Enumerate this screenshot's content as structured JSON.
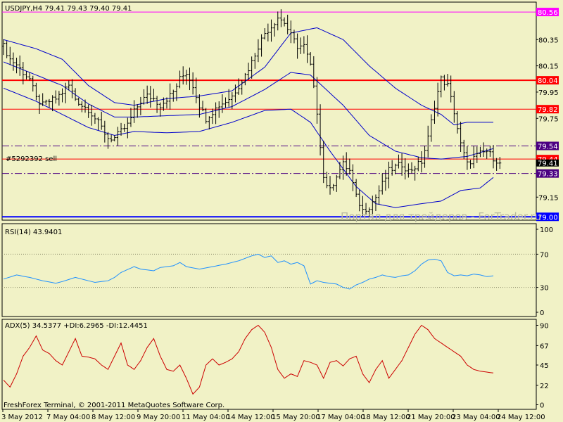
{
  "window": {
    "symbol_header": "USDJPY,H4  79.41 79.43 79.40 79.41",
    "order_label": "#5292392 sell",
    "watermark": "Портал для трейдеров - ForTrader.ru",
    "copyright": "FreshForex Terminal, © 2001-2011 MetaQuotes Software Corp."
  },
  "colors": {
    "background": "#f1f2c6",
    "candles": "#000000",
    "bollinger": "#0000cc",
    "rsi": "#1e90ff",
    "adx": "#cc0000",
    "resistance": "#ff0000",
    "support": "#0000ff",
    "magenta": "#ff00ff"
  },
  "chart_data": [
    {
      "type": "candlestick",
      "title": "USDJPY,H4",
      "ylim": [
        78.98,
        80.63
      ],
      "y_ticks": [
        "80.35",
        "80.15",
        "79.95",
        "79.75",
        "79.15"
      ],
      "levels": [
        {
          "label": "80.56",
          "value": 80.56,
          "color": "#ff00ff",
          "style": "solid"
        },
        {
          "label": "80.04",
          "value": 80.04,
          "color": "#ff0000",
          "style": "solid"
        },
        {
          "label": "79.82",
          "value": 79.82,
          "color": "#ff0000",
          "style": "solid"
        },
        {
          "label": "79.54",
          "value": 79.54,
          "color": "#4b0082",
          "style": "dashed"
        },
        {
          "label": "79.44",
          "value": 79.44,
          "color": "#ff0000",
          "style": "solid"
        },
        {
          "label": "79.33",
          "value": 79.33,
          "color": "#4b0082",
          "style": "dashed"
        },
        {
          "label": "79.00",
          "value": 79.0,
          "color": "#0000ff",
          "style": "solid"
        }
      ],
      "current_price_label": "79.41",
      "current_price": 79.41,
      "price_anchors": [
        [
          0,
          80.3
        ],
        [
          2,
          80.2
        ],
        [
          4,
          80.16
        ],
        [
          6,
          80.1
        ],
        [
          8,
          80.05
        ],
        [
          10,
          79.9
        ],
        [
          12,
          79.85
        ],
        [
          14,
          79.88
        ],
        [
          16,
          79.9
        ],
        [
          18,
          79.95
        ],
        [
          20,
          80.0
        ],
        [
          22,
          79.9
        ],
        [
          24,
          79.85
        ],
        [
          26,
          79.82
        ],
        [
          28,
          79.75
        ],
        [
          30,
          79.68
        ],
        [
          32,
          79.6
        ],
        [
          34,
          79.6
        ],
        [
          36,
          79.65
        ],
        [
          38,
          79.7
        ],
        [
          40,
          79.8
        ],
        [
          42,
          79.88
        ],
        [
          44,
          79.92
        ],
        [
          46,
          79.9
        ],
        [
          48,
          79.85
        ],
        [
          50,
          79.9
        ],
        [
          52,
          79.95
        ],
        [
          54,
          80.05
        ],
        [
          56,
          80.1
        ],
        [
          58,
          80.0
        ],
        [
          60,
          79.85
        ],
        [
          62,
          79.75
        ],
        [
          64,
          79.8
        ],
        [
          66,
          79.85
        ],
        [
          68,
          79.88
        ],
        [
          70,
          79.92
        ],
        [
          72,
          80.0
        ],
        [
          74,
          80.08
        ],
        [
          76,
          80.18
        ],
        [
          78,
          80.3
        ],
        [
          80,
          80.4
        ],
        [
          82,
          80.45
        ],
        [
          84,
          80.52
        ],
        [
          86,
          80.48
        ],
        [
          88,
          80.38
        ],
        [
          90,
          80.3
        ],
        [
          92,
          80.3
        ],
        [
          94,
          80.15
        ],
        [
          96,
          79.8
        ],
        [
          98,
          79.3
        ],
        [
          100,
          79.2
        ],
        [
          102,
          79.32
        ],
        [
          104,
          79.4
        ],
        [
          106,
          79.35
        ],
        [
          108,
          79.15
        ],
        [
          110,
          79.05
        ],
        [
          112,
          79.08
        ],
        [
          114,
          79.15
        ],
        [
          116,
          79.25
        ],
        [
          118,
          79.35
        ],
        [
          120,
          79.38
        ],
        [
          122,
          79.4
        ],
        [
          124,
          79.35
        ],
        [
          126,
          79.38
        ],
        [
          128,
          79.42
        ],
        [
          130,
          79.6
        ],
        [
          132,
          79.85
        ],
        [
          134,
          80.05
        ],
        [
          136,
          80.0
        ],
        [
          138,
          79.8
        ],
        [
          140,
          79.55
        ],
        [
          142,
          79.4
        ],
        [
          144,
          79.45
        ],
        [
          146,
          79.48
        ],
        [
          148,
          79.5
        ],
        [
          150,
          79.45
        ],
        [
          152,
          79.41
        ]
      ],
      "bb_upper": [
        [
          0,
          80.35
        ],
        [
          10,
          80.28
        ],
        [
          18,
          80.2
        ],
        [
          26,
          80.0
        ],
        [
          34,
          79.87
        ],
        [
          40,
          79.85
        ],
        [
          50,
          79.9
        ],
        [
          60,
          79.92
        ],
        [
          70,
          79.96
        ],
        [
          80,
          80.14
        ],
        [
          88,
          80.4
        ],
        [
          96,
          80.44
        ],
        [
          104,
          80.35
        ],
        [
          112,
          80.15
        ],
        [
          120,
          79.98
        ],
        [
          128,
          79.85
        ],
        [
          134,
          79.78
        ],
        [
          138,
          79.7
        ],
        [
          142,
          79.72
        ],
        [
          150,
          79.72
        ]
      ],
      "bb_middle": [
        [
          0,
          80.18
        ],
        [
          10,
          80.08
        ],
        [
          18,
          80.0
        ],
        [
          26,
          79.86
        ],
        [
          34,
          79.76
        ],
        [
          40,
          79.76
        ],
        [
          50,
          79.77
        ],
        [
          60,
          79.78
        ],
        [
          70,
          79.84
        ],
        [
          80,
          79.97
        ],
        [
          88,
          80.1
        ],
        [
          94,
          80.08
        ],
        [
          104,
          79.85
        ],
        [
          112,
          79.62
        ],
        [
          120,
          79.5
        ],
        [
          128,
          79.45
        ],
        [
          134,
          79.44
        ],
        [
          142,
          79.46
        ],
        [
          150,
          79.52
        ]
      ],
      "bb_lower": [
        [
          0,
          79.98
        ],
        [
          10,
          79.88
        ],
        [
          18,
          79.78
        ],
        [
          26,
          79.68
        ],
        [
          34,
          79.62
        ],
        [
          40,
          79.65
        ],
        [
          50,
          79.64
        ],
        [
          60,
          79.65
        ],
        [
          70,
          79.72
        ],
        [
          80,
          79.81
        ],
        [
          88,
          79.82
        ],
        [
          94,
          79.72
        ],
        [
          100,
          79.5
        ],
        [
          108,
          79.23
        ],
        [
          114,
          79.1
        ],
        [
          120,
          79.07
        ],
        [
          128,
          79.1
        ],
        [
          134,
          79.12
        ],
        [
          140,
          79.2
        ],
        [
          146,
          79.22
        ],
        [
          150,
          79.3
        ]
      ]
    },
    {
      "type": "line",
      "title": "RSI(14) 43.9401",
      "ylim": [
        0,
        100
      ],
      "y_ticks": [
        "100",
        "70",
        "30",
        "0"
      ],
      "levels": [
        70,
        30
      ],
      "series": [
        {
          "name": "RSI(14)",
          "points": [
            [
              0,
              40
            ],
            [
              4,
              45
            ],
            [
              8,
              42
            ],
            [
              12,
              38
            ],
            [
              16,
              35
            ],
            [
              18,
              37
            ],
            [
              22,
              42
            ],
            [
              24,
              40
            ],
            [
              28,
              36
            ],
            [
              32,
              38
            ],
            [
              34,
              42
            ],
            [
              36,
              48
            ],
            [
              40,
              55
            ],
            [
              42,
              52
            ],
            [
              46,
              50
            ],
            [
              48,
              54
            ],
            [
              52,
              56
            ],
            [
              54,
              60
            ],
            [
              56,
              55
            ],
            [
              60,
              52
            ],
            [
              64,
              55
            ],
            [
              68,
              58
            ],
            [
              72,
              62
            ],
            [
              76,
              68
            ],
            [
              78,
              70
            ],
            [
              80,
              66
            ],
            [
              82,
              68
            ],
            [
              84,
              60
            ],
            [
              86,
              62
            ],
            [
              88,
              58
            ],
            [
              90,
              60
            ],
            [
              92,
              56
            ],
            [
              94,
              34
            ],
            [
              96,
              38
            ],
            [
              98,
              36
            ],
            [
              102,
              34
            ],
            [
              104,
              30
            ],
            [
              106,
              28
            ],
            [
              108,
              33
            ],
            [
              110,
              36
            ],
            [
              112,
              40
            ],
            [
              114,
              42
            ],
            [
              116,
              45
            ],
            [
              118,
              43
            ],
            [
              120,
              42
            ],
            [
              122,
              44
            ],
            [
              124,
              45
            ],
            [
              126,
              50
            ],
            [
              128,
              58
            ],
            [
              130,
              63
            ],
            [
              132,
              64
            ],
            [
              134,
              62
            ],
            [
              136,
              48
            ],
            [
              138,
              44
            ],
            [
              140,
              45
            ],
            [
              142,
              44
            ],
            [
              144,
              46
            ],
            [
              146,
              45
            ],
            [
              148,
              43
            ],
            [
              150,
              44
            ]
          ]
        }
      ]
    },
    {
      "type": "line",
      "title": "ADX(5) 34.5377 +DI:6.2965 -DI:12.4451",
      "ylim": [
        -2,
        92
      ],
      "y_ticks": [
        "90",
        "67",
        "45",
        "22",
        "0"
      ],
      "series": [
        {
          "name": "ADX(5)",
          "points": [
            [
              0,
              28
            ],
            [
              2,
              20
            ],
            [
              4,
              35
            ],
            [
              6,
              55
            ],
            [
              8,
              65
            ],
            [
              10,
              78
            ],
            [
              12,
              62
            ],
            [
              14,
              58
            ],
            [
              16,
              50
            ],
            [
              18,
              45
            ],
            [
              20,
              60
            ],
            [
              22,
              75
            ],
            [
              24,
              55
            ],
            [
              26,
              54
            ],
            [
              28,
              52
            ],
            [
              30,
              45
            ],
            [
              32,
              40
            ],
            [
              34,
              55
            ],
            [
              36,
              70
            ],
            [
              38,
              45
            ],
            [
              40,
              40
            ],
            [
              42,
              50
            ],
            [
              44,
              65
            ],
            [
              46,
              75
            ],
            [
              48,
              55
            ],
            [
              50,
              40
            ],
            [
              52,
              38
            ],
            [
              54,
              45
            ],
            [
              56,
              30
            ],
            [
              58,
              12
            ],
            [
              60,
              20
            ],
            [
              62,
              45
            ],
            [
              64,
              52
            ],
            [
              66,
              45
            ],
            [
              68,
              48
            ],
            [
              70,
              52
            ],
            [
              72,
              60
            ],
            [
              74,
              75
            ],
            [
              76,
              85
            ],
            [
              78,
              90
            ],
            [
              80,
              82
            ],
            [
              82,
              65
            ],
            [
              84,
              40
            ],
            [
              86,
              30
            ],
            [
              88,
              35
            ],
            [
              90,
              32
            ],
            [
              92,
              50
            ],
            [
              94,
              48
            ],
            [
              96,
              45
            ],
            [
              98,
              30
            ],
            [
              100,
              48
            ],
            [
              102,
              50
            ],
            [
              104,
              44
            ],
            [
              106,
              52
            ],
            [
              108,
              55
            ],
            [
              110,
              35
            ],
            [
              112,
              25
            ],
            [
              114,
              40
            ],
            [
              116,
              50
            ],
            [
              118,
              30
            ],
            [
              120,
              40
            ],
            [
              122,
              50
            ],
            [
              124,
              65
            ],
            [
              126,
              80
            ],
            [
              128,
              90
            ],
            [
              130,
              85
            ],
            [
              132,
              75
            ],
            [
              134,
              70
            ],
            [
              136,
              65
            ],
            [
              138,
              60
            ],
            [
              140,
              55
            ],
            [
              142,
              45
            ],
            [
              144,
              40
            ],
            [
              146,
              38
            ],
            [
              150,
              36
            ]
          ]
        }
      ]
    }
  ],
  "x_axis": {
    "labels": [
      "3 May 2012",
      "7 May 04:00",
      "8 May 12:00",
      "9 May 20:00",
      "11 May 04:00",
      "14 May 12:00",
      "15 May 20:00",
      "17 May 04:00",
      "18 May 12:00",
      "21 May 20:00",
      "23 May 04:00",
      "24 May 12:00"
    ]
  }
}
